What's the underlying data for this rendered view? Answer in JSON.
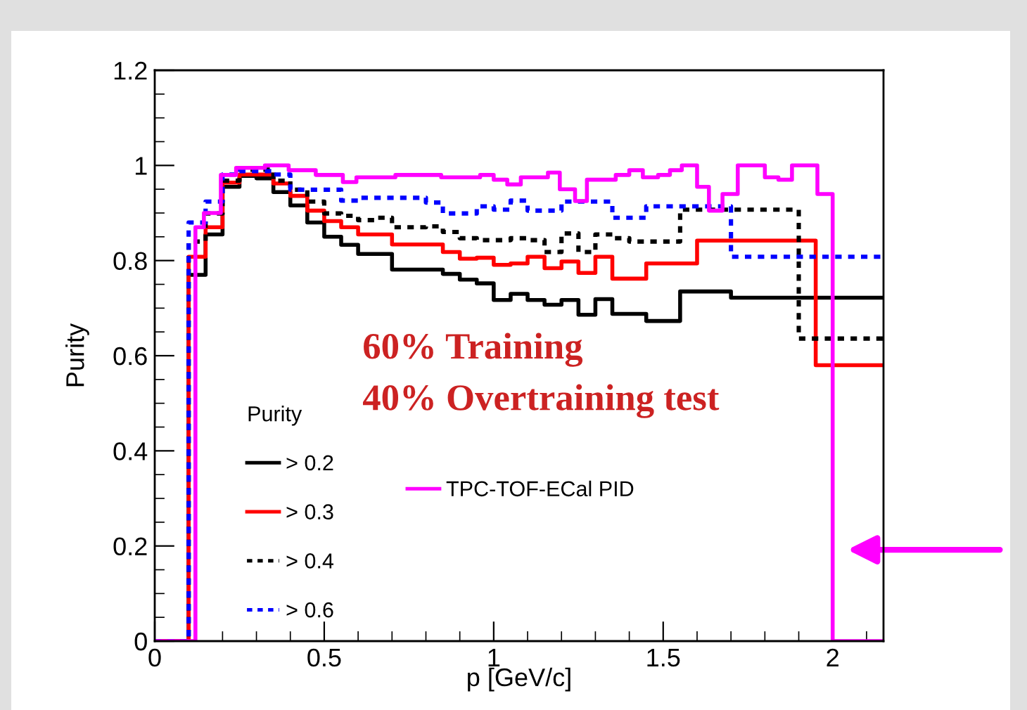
{
  "chart_data": {
    "type": "step",
    "xlabel": "p [GeV/c]",
    "ylabel": "Purity",
    "legend_title": "Purity",
    "legend": "bottom left",
    "xlim": [
      0,
      2.15
    ],
    "xticks": [
      0,
      0.5,
      1,
      1.5,
      2
    ],
    "ylim": [
      0,
      1.2
    ],
    "yticks": [
      0,
      0.2,
      0.4,
      0.6,
      0.8,
      1,
      1.2
    ],
    "grid": false,
    "marker": "none",
    "annotations": [
      "60% Training",
      "40% Overtraining test"
    ],
    "series": [
      {
        "name": "> 0.2",
        "color": "#000000",
        "line_style": "solid",
        "x": [
          0,
          0.1,
          0.15,
          0.2,
          0.25,
          0.3,
          0.35,
          0.4,
          0.45,
          0.5,
          0.55,
          0.6,
          0.65,
          0.7,
          0.75,
          0.8,
          0.85,
          0.9,
          0.95,
          1.0,
          1.05,
          1.1,
          1.15,
          1.2,
          1.25,
          1.3,
          1.35,
          1.4,
          1.45,
          1.5,
          1.55,
          1.7,
          2.15
        ],
        "values": [
          0,
          0.77,
          0.855,
          0.955,
          0.978,
          0.973,
          0.944,
          0.916,
          0.88,
          0.85,
          0.833,
          0.814,
          0.814,
          0.781,
          0.781,
          0.781,
          0.772,
          0.76,
          0.752,
          0.717,
          0.73,
          0.717,
          0.707,
          0.717,
          0.686,
          0.719,
          0.688,
          0.688,
          0.673,
          0.673,
          0.735,
          0.722,
          0.722
        ]
      },
      {
        "name": "> 0.3",
        "color": "#ff0000",
        "line_style": "solid",
        "x": [
          0,
          0.1,
          0.15,
          0.2,
          0.25,
          0.35,
          0.4,
          0.45,
          0.5,
          0.55,
          0.6,
          0.7,
          0.85,
          0.9,
          0.95,
          1.0,
          1.05,
          1.1,
          1.15,
          1.2,
          1.25,
          1.3,
          1.35,
          1.45,
          1.6,
          1.95,
          2.15
        ],
        "values": [
          0,
          0.808,
          0.87,
          0.964,
          0.981,
          0.962,
          0.936,
          0.905,
          0.883,
          0.87,
          0.855,
          0.834,
          0.818,
          0.804,
          0.806,
          0.791,
          0.794,
          0.808,
          0.784,
          0.798,
          0.774,
          0.808,
          0.762,
          0.794,
          0.842,
          0.58,
          0.58
        ]
      },
      {
        "name": "> 0.4",
        "color": "#000000",
        "line_style": "dotted",
        "x": [
          0,
          0.1,
          0.15,
          0.2,
          0.25,
          0.35,
          0.4,
          0.45,
          0.5,
          0.55,
          0.6,
          0.65,
          0.7,
          0.8,
          0.85,
          0.9,
          0.95,
          1.05,
          1.1,
          1.15,
          1.2,
          1.25,
          1.3,
          1.35,
          1.4,
          1.55,
          1.9,
          2.15
        ],
        "values": [
          0,
          0.84,
          0.899,
          0.968,
          0.991,
          0.968,
          0.949,
          0.924,
          0.899,
          0.894,
          0.885,
          0.89,
          0.87,
          0.872,
          0.86,
          0.847,
          0.843,
          0.847,
          0.843,
          0.818,
          0.857,
          0.818,
          0.855,
          0.847,
          0.84,
          0.907,
          0.636,
          0.636
        ]
      },
      {
        "name": "> 0.6",
        "color": "#0000ff",
        "line_style": "dotted",
        "x": [
          0,
          0.1,
          0.15,
          0.2,
          0.25,
          0.35,
          0.4,
          0.55,
          0.6,
          0.8,
          0.85,
          0.95,
          1.0,
          1.05,
          1.1,
          1.2,
          1.35,
          1.45,
          1.7,
          2.15
        ],
        "values": [
          0,
          0.88,
          0.924,
          0.981,
          0.988,
          0.981,
          0.949,
          0.926,
          0.932,
          0.922,
          0.899,
          0.914,
          0.907,
          0.926,
          0.905,
          0.924,
          0.89,
          0.914,
          0.808,
          0.808
        ]
      },
      {
        "name": "TPC-TOF-ECal PID",
        "color": "#ff00ff",
        "line_style": "solid",
        "x": [
          0,
          0.12,
          0.145,
          0.195,
          0.24,
          0.325,
          0.395,
          0.475,
          0.555,
          0.595,
          0.71,
          0.76,
          0.845,
          0.915,
          0.96,
          1.0,
          1.04,
          1.08,
          1.16,
          1.195,
          1.24,
          1.275,
          1.36,
          1.4,
          1.44,
          1.485,
          1.52,
          1.555,
          1.6,
          1.635,
          1.675,
          1.72,
          1.8,
          1.84,
          1.88,
          1.955,
          2.0,
          2.15
        ],
        "values": [
          0,
          0.87,
          0.9,
          0.98,
          0.995,
          1.0,
          0.99,
          0.98,
          0.965,
          0.975,
          0.98,
          0.98,
          0.975,
          0.975,
          0.98,
          0.97,
          0.96,
          0.975,
          0.985,
          0.95,
          0.925,
          0.97,
          0.98,
          0.99,
          0.975,
          0.98,
          0.99,
          1.0,
          0.955,
          0.905,
          0.94,
          1.0,
          0.975,
          0.97,
          1.0,
          0.94,
          0,
          0
        ]
      }
    ]
  }
}
